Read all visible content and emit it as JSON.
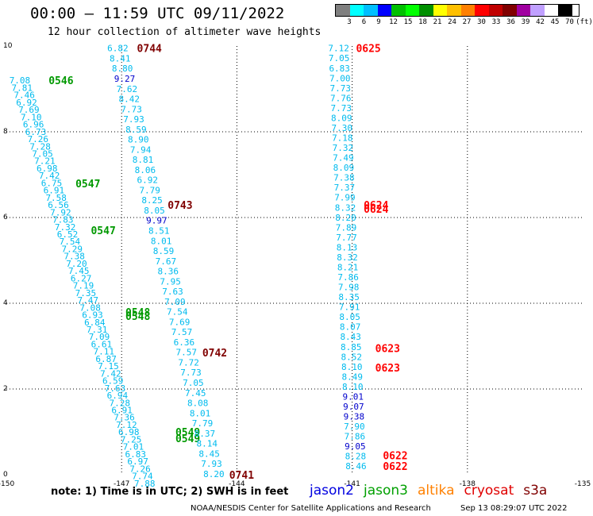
{
  "header": {
    "title": "00:00 – 11:59 UTC 09/11/2022",
    "subtitle": "12 hour collection of altimeter wave heights"
  },
  "legend": {
    "labels": [
      "3",
      "6",
      "9",
      "12",
      "15",
      "18",
      "21",
      "24",
      "27",
      "30",
      "33",
      "36",
      "39",
      "42",
      "45",
      "70",
      "(ft)"
    ],
    "colors": [
      "#7f7f7f",
      "#00ffff",
      "#00bfff",
      "#0000ff",
      "#00c000",
      "#00ff00",
      "#009000",
      "#ffff00",
      "#ffc000",
      "#ff8000",
      "#ff0000",
      "#c00000",
      "#800000",
      "#a000a0",
      "#c0a0ff",
      "#ffffff",
      "#000000"
    ]
  },
  "footer": {
    "note": "note:  1) Time is in UTC;  2) SWH is in feet",
    "sats": [
      {
        "name": "jason2",
        "color": "#0000e0"
      },
      {
        "name": "jason3",
        "color": "#00a000"
      },
      {
        "name": "altika",
        "color": "#ff8000"
      },
      {
        "name": "cryosat",
        "color": "#e00000"
      },
      {
        "name": "s3a",
        "color": "#800000"
      }
    ],
    "credit": "NOAA/NESDIS Center for Satellite Applications and Research",
    "timestamp": "Sep 13 08:29:07 UTC 2022"
  },
  "chart_data": {
    "type": "scatter",
    "x_ticks": [
      "-150",
      "-147",
      "-144",
      "-141",
      "-138",
      "-135"
    ],
    "y_ticks": [
      "0",
      "2",
      "4",
      "6",
      "8",
      "10"
    ],
    "xlim": [
      -150,
      -135
    ],
    "ylim": [
      0,
      10
    ],
    "grid": "dotted",
    "colors": {
      "light": "#00bbee",
      "blue": "#0000cc",
      "jason3": "#009900",
      "s3a": "#800000",
      "cryosat": "#ff0000"
    },
    "passes": [
      {
        "label": "0546",
        "sat": "jason3",
        "lx": -148.9,
        "ly": 9.2,
        "side": "left",
        "start": [
          -149.65,
          9.2
        ],
        "end": [
          -146.4,
          -0.2
        ],
        "values": [
          "7.08",
          "7.81",
          "7.46",
          "6.92",
          "7.69",
          "7.10",
          "6.96",
          "6.73",
          "7.26",
          "7.28",
          "7.05",
          "7.21",
          "6.98",
          "7.42",
          "6.75",
          "6.91",
          "7.58",
          "6.56",
          "7.92",
          "7.83",
          "7.32",
          "6.52",
          "7.54",
          "7.29",
          "7.38",
          "7.20",
          "7.45",
          "6.27",
          "7.19",
          "7.35",
          "7.47",
          "7.08",
          "6.93",
          "6.84",
          "7.31",
          "7.09",
          "6.61",
          "7.11",
          "6.87",
          "7.15",
          "7.42",
          "6.59",
          "7.63",
          "6.94",
          "7.28",
          "6.91",
          "7.36",
          "7.12",
          "6.98",
          "7.25",
          "7.01",
          "6.83",
          "6.97",
          "7.26",
          "7.74",
          "7.88"
        ]
      },
      {
        "label": "0547",
        "sat": "jason3",
        "lx": -148.2,
        "ly": 6.8,
        "side": "left",
        "values": []
      },
      {
        "label": "0547",
        "sat": "jason3",
        "lx": -147.8,
        "ly": 5.7,
        "side": "left",
        "values": []
      },
      {
        "label": "0548",
        "sat": "jason3",
        "lx": -146.9,
        "ly": 3.8,
        "side": "left",
        "values": []
      },
      {
        "label": "0548",
        "sat": "jason3",
        "lx": -146.9,
        "ly": 3.7,
        "side": "left",
        "values": []
      },
      {
        "label": "0549",
        "sat": "jason3",
        "lx": -145.6,
        "ly": 1.0,
        "side": "left",
        "values": []
      },
      {
        "label": "0549",
        "sat": "jason3",
        "lx": -145.6,
        "ly": 0.85,
        "side": "left",
        "values": []
      },
      {
        "label": "0744",
        "sat": "s3a",
        "lx": -146.6,
        "ly": 9.95,
        "side": "right",
        "start": [
          -147.1,
          9.95
        ],
        "end": [
          -144.6,
          0.02
        ],
        "values": [
          "6.82",
          "8.41",
          "8.80",
          "9.27",
          "7.62",
          "8.42",
          "7.73",
          "7.93",
          "8.59",
          "8.90",
          "7.94",
          "8.81",
          "8.06",
          "6.92",
          "7.79",
          "8.25",
          "8.05",
          "9.97",
          "8.51",
          "8.01",
          "8.59",
          "7.67",
          "8.36",
          "7.95",
          "7.63",
          "7.09",
          "7.54",
          "7.69",
          "7.57",
          "6.36",
          "7.57",
          "7.72",
          "7.73",
          "7.05",
          "7.45",
          "8.08",
          "8.01",
          "7.79",
          "8.37",
          "8.14",
          "8.45",
          "7.93",
          "8.20"
        ]
      },
      {
        "label": "0743",
        "sat": "s3a",
        "lx": -145.8,
        "ly": 6.3,
        "side": "right",
        "values": []
      },
      {
        "label": "0742",
        "sat": "s3a",
        "lx": -144.9,
        "ly": 2.85,
        "side": "right",
        "values": []
      },
      {
        "label": "0741",
        "sat": "s3a",
        "lx": -144.2,
        "ly": 0.0,
        "side": "right",
        "values": []
      },
      {
        "label": "0625",
        "sat": "cryosat",
        "lx": -140.9,
        "ly": 9.95,
        "side": "right",
        "start": [
          -141.35,
          9.95
        ],
        "end": [
          -140.9,
          0.2
        ],
        "values": [
          "7.12",
          "7.05",
          "6.83",
          "7.00",
          "7.73",
          "7.76",
          "7.73",
          "8.09",
          "7.30",
          "7.18",
          "7.32",
          "7.49",
          "8.09",
          "7.38",
          "7.37",
          "7.99",
          "8.32",
          "8.20",
          "7.89",
          "7.77",
          "8.13",
          "8.32",
          "8.21",
          "7.86",
          "7.98",
          "8.35",
          "7.91",
          "8.05",
          "8.07",
          "8.43",
          "8.85",
          "8.52",
          "8.10",
          "8.49",
          "8.10",
          "9.01",
          "9.07",
          "9.38",
          "7.90",
          "7.86",
          "9.05",
          "8.28",
          "8.46"
        ]
      },
      {
        "label": "0624",
        "sat": "cryosat",
        "lx": -140.7,
        "ly": 6.3,
        "side": "right",
        "values": []
      },
      {
        "label": "0624",
        "sat": "cryosat",
        "lx": -140.7,
        "ly": 6.2,
        "side": "right",
        "values": []
      },
      {
        "label": "0623",
        "sat": "cryosat",
        "lx": -140.4,
        "ly": 2.95,
        "side": "right",
        "values": []
      },
      {
        "label": "0623",
        "sat": "cryosat",
        "lx": -140.4,
        "ly": 2.5,
        "side": "right",
        "values": []
      },
      {
        "label": "0622",
        "sat": "cryosat",
        "lx": -140.2,
        "ly": 0.45,
        "side": "right",
        "values": []
      },
      {
        "label": "0622",
        "sat": "cryosat",
        "lx": -140.2,
        "ly": 0.2,
        "side": "right",
        "values": []
      }
    ]
  }
}
